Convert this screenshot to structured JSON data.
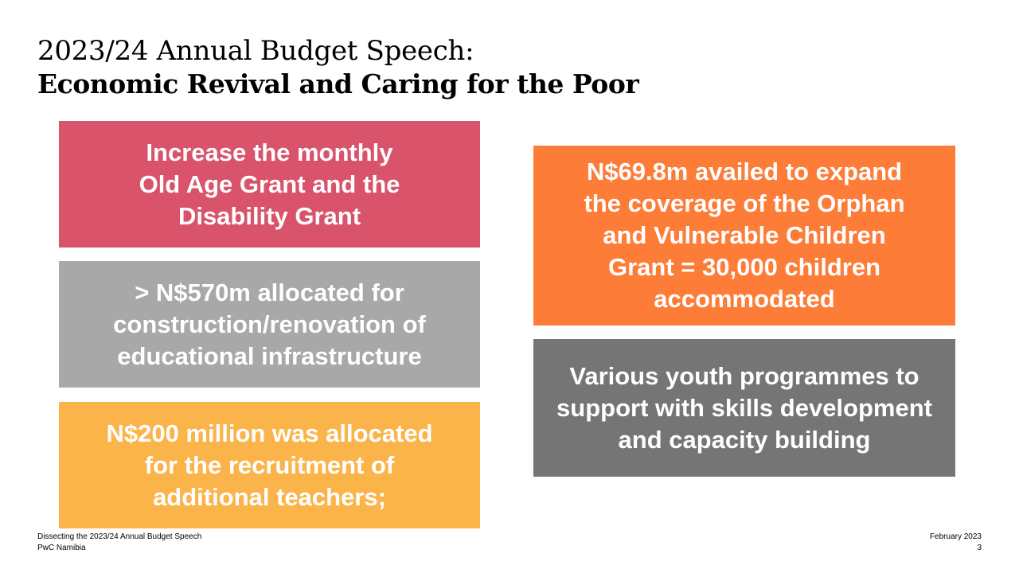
{
  "title": {
    "line1": "2023/24 Annual Budget Speech:",
    "line2": "Economic Revival and Caring for the Poor"
  },
  "boxes": {
    "old_age": "Increase the monthly\nOld Age Grant and the\nDisability Grant",
    "education": "> N$570m allocated for\nconstruction/renovation of\neducational infrastructure",
    "teachers": "N$200 million was allocated\nfor the recruitment of\nadditional teachers;",
    "orphan": "N$69.8m availed to expand\nthe coverage of the Orphan\nand Vulnerable Children\nGrant = 30,000 children\naccommodated",
    "youth": "Various youth programmes to\nsupport with skills development\nand capacity building"
  },
  "colors": {
    "old_age": "#d9536b",
    "education": "#a8a8a8",
    "teachers": "#fbb44a",
    "orphan": "#fd7c37",
    "youth": "#757575"
  },
  "footer": {
    "left_line1": "Dissecting the 2023/24 Annual Budget Speech",
    "left_line2": "PwC Namibia",
    "date": "February 2023",
    "page_number": "3"
  }
}
